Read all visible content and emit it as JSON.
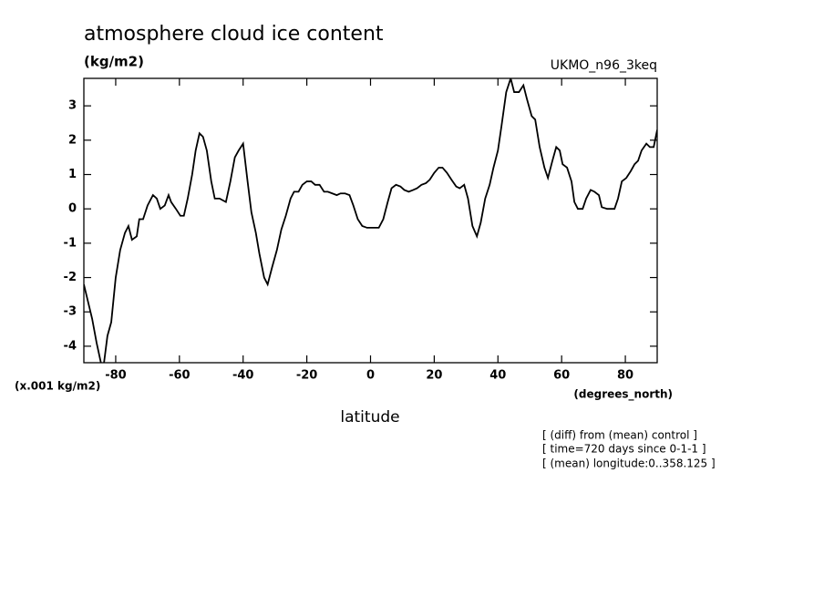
{
  "chart_data": {
    "type": "line",
    "title": "atmosphere cloud ice content",
    "units": "(kg/m2)",
    "source": "UKMO_n96_3keq",
    "ylabel": "(x.001 kg/m2)",
    "xunits": "(degrees_north)",
    "xlabel": "latitude",
    "annotations": [
      "[ (diff) from (mean) control ]",
      "[ time=720 days since 0-1-1 ]",
      "[ (mean) longitude:0..358.125 ]"
    ],
    "color": "#000000",
    "xlim": [
      -90,
      90
    ],
    "ylim": [
      -4.48,
      3.8
    ],
    "xticks": [
      -80,
      -60,
      -40,
      -20,
      0,
      20,
      40,
      60,
      80
    ],
    "yticks": [
      -4,
      -3,
      -2,
      -1,
      0,
      1,
      2,
      3
    ],
    "x": [
      -90,
      -87.4,
      -86.0,
      -84.6,
      -83.7,
      -82.6,
      -81.4,
      -80.0,
      -78.6,
      -77.1,
      -76.0,
      -74.9,
      -73.4,
      -72.6,
      -71.4,
      -70.0,
      -68.3,
      -67.1,
      -66.0,
      -64.6,
      -63.4,
      -62.6,
      -61.1,
      -59.7,
      -58.6,
      -57.4,
      -56.0,
      -54.9,
      -53.7,
      -52.6,
      -51.4,
      -50.0,
      -48.9,
      -47.4,
      -45.4,
      -44.0,
      -42.6,
      -41.4,
      -40.0,
      -38.6,
      -37.4,
      -36.0,
      -34.9,
      -33.4,
      -32.3,
      -30.9,
      -29.4,
      -28.0,
      -26.6,
      -25.1,
      -24.0,
      -22.6,
      -21.4,
      -20.0,
      -18.6,
      -17.4,
      -16.0,
      -14.6,
      -13.4,
      -12.0,
      -10.6,
      -9.4,
      -8.0,
      -6.6,
      -5.4,
      -4.0,
      -2.6,
      -1.1,
      0,
      1.4,
      2.6,
      4.0,
      5.4,
      6.6,
      8.0,
      9.4,
      10.6,
      12.0,
      13.4,
      14.6,
      16.0,
      17.4,
      18.6,
      20.0,
      21.4,
      22.6,
      24.0,
      25.4,
      26.9,
      28.0,
      29.4,
      30.6,
      32.0,
      33.4,
      34.6,
      36.0,
      37.4,
      38.6,
      40.0,
      41.1,
      42.6,
      44.0,
      45.1,
      46.6,
      48.0,
      49.1,
      50.6,
      51.7,
      53.1,
      54.6,
      55.7,
      57.1,
      58.3,
      59.4,
      60.3,
      61.7,
      63.1,
      64.0,
      65.1,
      66.6,
      67.7,
      69.1,
      70.3,
      71.7,
      72.6,
      74.3,
      76.6,
      77.7,
      78.9,
      80.3,
      81.7,
      82.9,
      84.0,
      85.1,
      86.6,
      87.7,
      88.9,
      90
    ],
    "values": [
      -2.2,
      -3.2,
      -3.9,
      -4.5,
      -4.5,
      -3.7,
      -3.3,
      -2.0,
      -1.2,
      -0.7,
      -0.5,
      -0.9,
      -0.8,
      -0.3,
      -0.3,
      0.1,
      0.4,
      0.3,
      0.0,
      0.1,
      0.4,
      0.2,
      0.0,
      -0.2,
      -0.2,
      0.3,
      1.0,
      1.7,
      2.2,
      2.1,
      1.7,
      0.8,
      0.3,
      0.3,
      0.2,
      0.8,
      1.5,
      1.7,
      1.9,
      0.8,
      -0.1,
      -0.7,
      -1.3,
      -2.0,
      -2.2,
      -1.7,
      -1.2,
      -0.6,
      -0.2,
      0.3,
      0.5,
      0.5,
      0.7,
      0.8,
      0.8,
      0.7,
      0.7,
      0.5,
      0.5,
      0.45,
      0.4,
      0.45,
      0.45,
      0.4,
      0.1,
      -0.3,
      -0.5,
      -0.55,
      -0.55,
      -0.55,
      -0.55,
      -0.3,
      0.2,
      0.6,
      0.7,
      0.65,
      0.55,
      0.5,
      0.55,
      0.6,
      0.7,
      0.75,
      0.85,
      1.05,
      1.2,
      1.2,
      1.05,
      0.85,
      0.65,
      0.6,
      0.7,
      0.3,
      -0.5,
      -0.8,
      -0.4,
      0.3,
      0.7,
      1.2,
      1.7,
      2.4,
      3.4,
      3.8,
      3.4,
      3.4,
      3.6,
      3.2,
      2.7,
      2.6,
      1.8,
      1.2,
      0.9,
      1.4,
      1.8,
      1.7,
      1.3,
      1.2,
      0.8,
      0.2,
      0.0,
      0.0,
      0.3,
      0.55,
      0.5,
      0.4,
      0.05,
      0.0,
      0.0,
      0.3,
      0.8,
      0.9,
      1.1,
      1.3,
      1.4,
      1.7,
      1.9,
      1.8,
      1.8,
      2.3
    ]
  }
}
